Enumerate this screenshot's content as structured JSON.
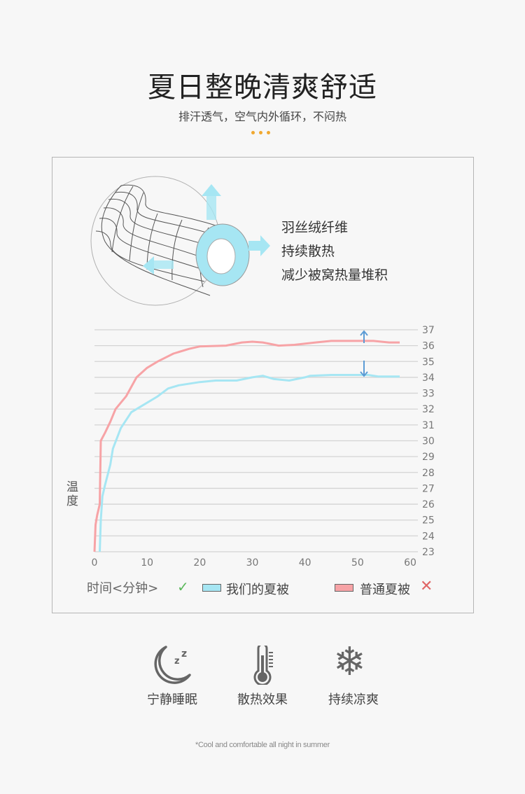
{
  "header": {
    "title": "夏日整晚清爽舒适",
    "subtitle": "排汗透气，空气内外循环，不闷热"
  },
  "illustration": {
    "features": [
      "羽丝绒纤维",
      "持续散热",
      "减少被窝热量堆积"
    ]
  },
  "chart_data": {
    "type": "line",
    "xlabel": "时间<分钟>",
    "ylabel": "温度",
    "xlim": [
      0,
      60
    ],
    "ylim": [
      23,
      37
    ],
    "x_ticks": [
      "0",
      "10",
      "20",
      "30",
      "40",
      "50",
      "60"
    ],
    "y_ticks": [
      "23",
      "24",
      "25",
      "26",
      "27",
      "28",
      "29",
      "30",
      "31",
      "32",
      "33",
      "34",
      "35",
      "36",
      "37"
    ],
    "grid": true,
    "y_axis_side": "right",
    "legend_placement": "bottom",
    "annotations": [
      "arrow-up near 36-37",
      "arrow-down near 34-35"
    ],
    "series": [
      {
        "name": "我们的夏被",
        "color": "#a6e6f3",
        "legend_mark": "check",
        "x": [
          1,
          1.2,
          1.5,
          2,
          3,
          3.5,
          5,
          7,
          9,
          12,
          14,
          16,
          20,
          23,
          27,
          30,
          32,
          34,
          37,
          40,
          41,
          45,
          52,
          54,
          58
        ],
        "y": [
          23,
          25,
          26.5,
          27.2,
          28.5,
          29.5,
          30.8,
          31.8,
          32.2,
          32.8,
          33.3,
          33.5,
          33.7,
          33.8,
          33.8,
          34,
          34.1,
          33.9,
          33.8,
          34,
          34.1,
          34.15,
          34.15,
          34.05,
          34.05
        ]
      },
      {
        "name": "普通夏被",
        "color": "#f7a3a6",
        "legend_mark": "cross",
        "x": [
          0,
          0.2,
          0.5,
          1,
          1.2,
          2,
          3,
          4,
          6,
          8,
          10,
          12,
          15,
          18,
          20,
          25,
          28,
          30,
          32,
          35,
          38,
          42,
          45,
          50,
          53,
          56,
          58
        ],
        "y": [
          23,
          24.7,
          25.3,
          26,
          30,
          30.5,
          31.2,
          32,
          32.8,
          34,
          34.6,
          35,
          35.5,
          35.8,
          35.95,
          36,
          36.2,
          36.25,
          36.2,
          36,
          36.05,
          36.2,
          36.3,
          36.3,
          36.3,
          36.2,
          36.2
        ]
      }
    ]
  },
  "features": [
    {
      "icon": "moon-sleep-icon",
      "label": "宁静睡眠"
    },
    {
      "icon": "thermometer-icon",
      "label": "散热效果"
    },
    {
      "icon": "snowflake-icon",
      "label": "持续凉爽"
    }
  ],
  "footer": "*Cool and comfortable all night in summer",
  "colors": {
    "accent": "#f0a830",
    "cool": "#a6e6f3",
    "warm": "#f7a3a6",
    "arrow": "#5b9bd5",
    "check": "#5cb85c",
    "cross": "#e06666"
  }
}
